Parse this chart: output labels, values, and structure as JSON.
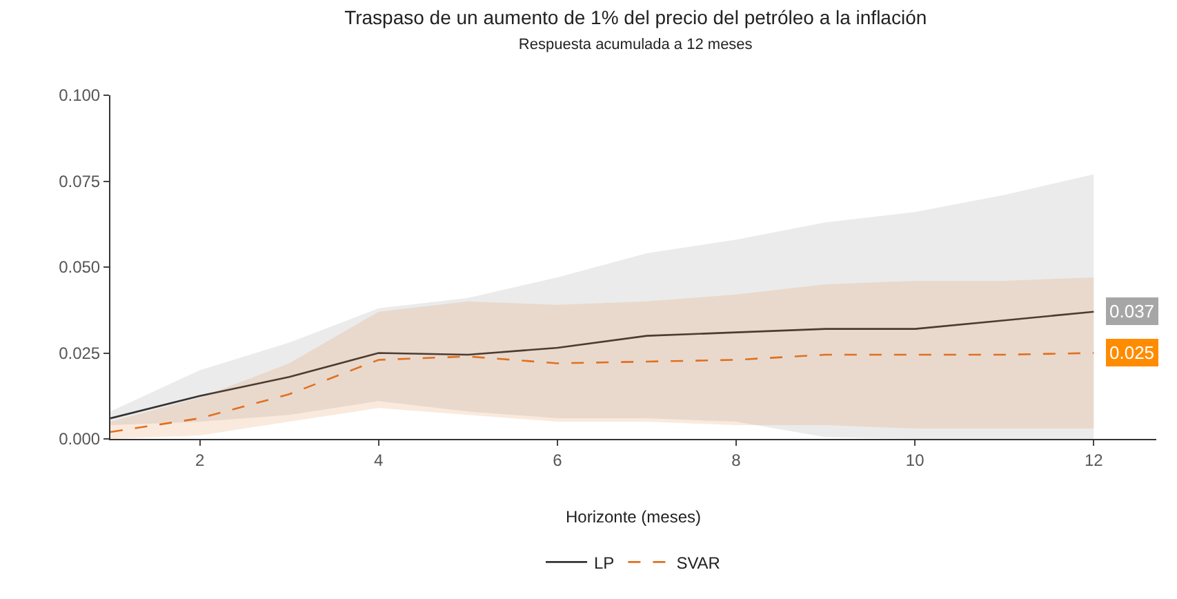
{
  "chart_data": {
    "type": "line",
    "title": "Traspaso de un aumento de 1% del precio del petróleo a la inflación",
    "subtitle": "Respuesta acumulada a 12 meses",
    "xlabel": "Horizonte (meses)",
    "x": [
      1,
      2,
      3,
      4,
      5,
      6,
      7,
      8,
      9,
      10,
      11,
      12
    ],
    "series": [
      {
        "name": "LP",
        "color": "#333333",
        "line_style": "solid",
        "values": [
          0.006,
          0.0125,
          0.018,
          0.025,
          0.0245,
          0.0265,
          0.03,
          0.031,
          0.032,
          0.032,
          0.0345,
          0.037
        ],
        "lower": [
          0.004,
          0.005,
          0.007,
          0.011,
          0.008,
          0.006,
          0.006,
          0.005,
          0.0005,
          0.0,
          0.0,
          0.0
        ],
        "upper": [
          0.008,
          0.02,
          0.028,
          0.038,
          0.041,
          0.047,
          0.054,
          0.058,
          0.063,
          0.066,
          0.071,
          0.077
        ]
      },
      {
        "name": "SVAR",
        "color": "#e07020",
        "line_style": "dashed",
        "values": [
          0.002,
          0.006,
          0.013,
          0.023,
          0.024,
          0.022,
          0.0225,
          0.023,
          0.0245,
          0.0245,
          0.0245,
          0.025
        ],
        "lower": [
          0.0,
          0.001,
          0.005,
          0.009,
          0.007,
          0.005,
          0.005,
          0.004,
          0.004,
          0.003,
          0.003,
          0.003
        ],
        "upper": [
          0.005,
          0.012,
          0.022,
          0.037,
          0.04,
          0.039,
          0.04,
          0.042,
          0.045,
          0.046,
          0.046,
          0.047
        ]
      }
    ],
    "annotations": [
      {
        "text": "0.037",
        "x": 12,
        "y": 0.037
      },
      {
        "text": "0.025",
        "x": 12,
        "y": 0.025
      }
    ],
    "xlim": [
      1,
      12.7
    ],
    "xticks": [
      2,
      4,
      6,
      8,
      10,
      12
    ],
    "ylim": [
      0,
      0.1
    ],
    "yticks": [
      {
        "value": 0,
        "label": "0.000"
      },
      {
        "value": 0.025,
        "label": "0.025"
      },
      {
        "value": 0.05,
        "label": "0.050"
      },
      {
        "value": 0.075,
        "label": "0.075"
      },
      {
        "value": 0.1,
        "label": "0.100"
      }
    ],
    "grid": false,
    "legend": "bottom",
    "marker": "none"
  }
}
